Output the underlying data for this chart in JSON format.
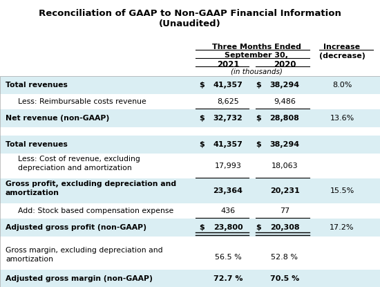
{
  "title1": "Reconciliation of GAAP to Non-GAAP Financial Information",
  "title2": "(Unaudited)",
  "header1": "Three Months Ended",
  "header2": "September 30,",
  "col_2021": "2021",
  "col_2020": "2020",
  "col_units": "(in thousands)",
  "col_increase": "Increase\n(decrease)",
  "rows": [
    {
      "label": "Total revenues",
      "bold": true,
      "indent": false,
      "dollar2021": true,
      "dollar2020": true,
      "val2021": "41,357",
      "val2020": "38,294",
      "increase": "8.0%",
      "bg": "#daeef3",
      "line_after": false,
      "double_after": false
    },
    {
      "label": "Less: Reimbursable costs revenue",
      "bold": false,
      "indent": true,
      "dollar2021": false,
      "dollar2020": false,
      "val2021": "8,625",
      "val2020": "9,486",
      "increase": "",
      "bg": "#ffffff",
      "line_after": true,
      "double_after": false
    },
    {
      "label": "Net revenue (non-GAAP)",
      "bold": true,
      "indent": false,
      "dollar2021": true,
      "dollar2020": true,
      "val2021": "32,732",
      "val2020": "28,808",
      "increase": "13.6%",
      "bg": "#daeef3",
      "line_after": false,
      "double_after": false
    },
    {
      "label": "",
      "bold": false,
      "indent": false,
      "dollar2021": false,
      "dollar2020": false,
      "val2021": "",
      "val2020": "",
      "increase": "",
      "bg": "#ffffff",
      "line_after": false,
      "double_after": false
    },
    {
      "label": "Total revenues",
      "bold": true,
      "indent": false,
      "dollar2021": true,
      "dollar2020": true,
      "val2021": "41,357",
      "val2020": "38,294",
      "increase": "",
      "bg": "#daeef3",
      "line_after": false,
      "double_after": false
    },
    {
      "label": "Less: Cost of revenue, excluding\ndepreciation and amortization",
      "bold": false,
      "indent": true,
      "dollar2021": false,
      "dollar2020": false,
      "val2021": "17,993",
      "val2020": "18,063",
      "increase": "",
      "bg": "#ffffff",
      "line_after": true,
      "double_after": false
    },
    {
      "label": "Gross profit, excluding depreciation and\namortization",
      "bold": true,
      "indent": false,
      "dollar2021": false,
      "dollar2020": false,
      "val2021": "23,364",
      "val2020": "20,231",
      "increase": "15.5%",
      "bg": "#daeef3",
      "line_after": false,
      "double_after": false
    },
    {
      "label": "Add: Stock based compensation expense",
      "bold": false,
      "indent": true,
      "dollar2021": false,
      "dollar2020": false,
      "val2021": "436",
      "val2020": "77",
      "increase": "",
      "bg": "#ffffff",
      "line_after": true,
      "double_after": false
    },
    {
      "label": "Adjusted gross profit (non-GAAP)",
      "bold": true,
      "indent": false,
      "dollar2021": true,
      "dollar2020": true,
      "val2021": "23,800",
      "val2020": "20,308",
      "increase": "17.2%",
      "bg": "#daeef3",
      "line_after": false,
      "double_after": true
    },
    {
      "label": "",
      "bold": false,
      "indent": false,
      "dollar2021": false,
      "dollar2020": false,
      "val2021": "",
      "val2020": "",
      "increase": "",
      "bg": "#ffffff",
      "line_after": false,
      "double_after": false
    },
    {
      "label": "Gross margin, excluding depreciation and\namortization",
      "bold": false,
      "indent": false,
      "dollar2021": false,
      "dollar2020": false,
      "val2021": "56.5 %",
      "val2020": "52.8 %",
      "increase": "",
      "bg": "#ffffff",
      "line_after": false,
      "double_after": false
    },
    {
      "label": "Adjusted gross margin (non-GAAP)",
      "bold": true,
      "indent": false,
      "dollar2021": false,
      "dollar2020": false,
      "val2021": "72.7 %",
      "val2020": "70.5 %",
      "increase": "",
      "bg": "#daeef3",
      "line_after": false,
      "double_after": false
    }
  ],
  "fig_width": 5.5,
  "fig_height": 4.15,
  "dpi": 100
}
